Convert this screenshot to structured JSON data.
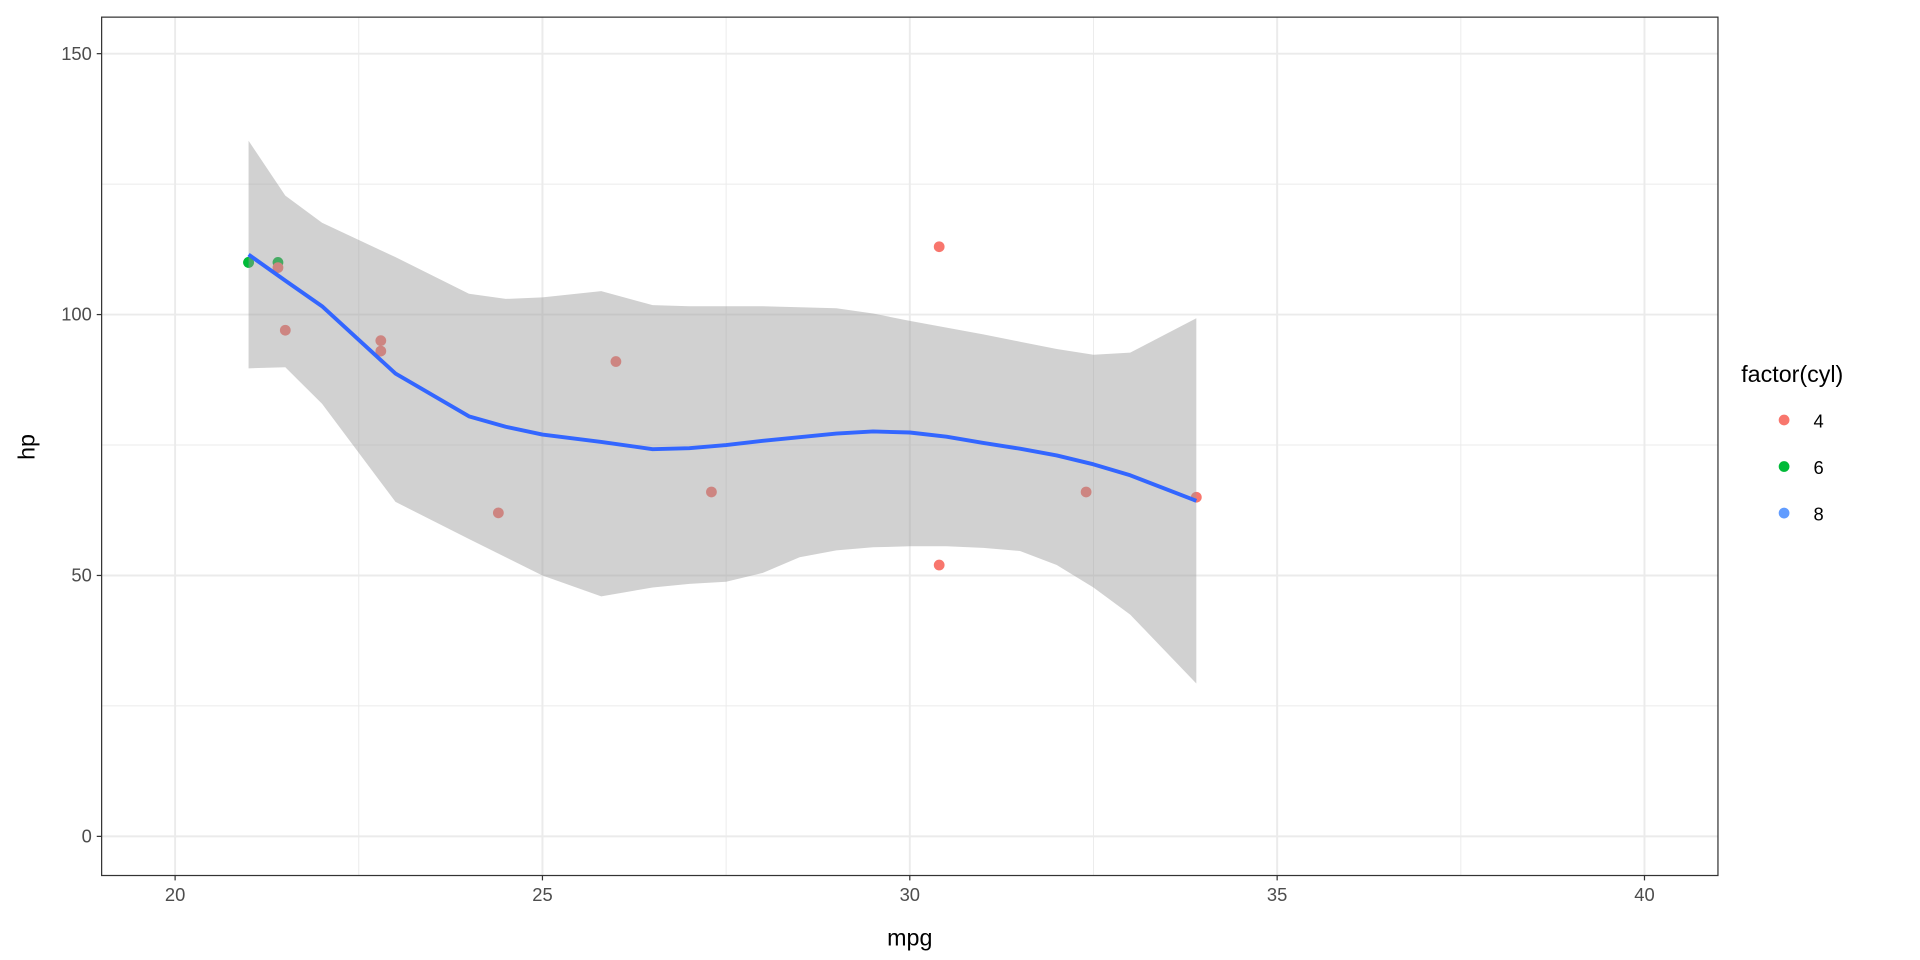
{
  "chart_data": {
    "type": "scatter",
    "title": "",
    "xlabel": "mpg",
    "ylabel": "hp",
    "xlim": [
      19.0,
      41.0
    ],
    "ylim": [
      -7.5,
      157
    ],
    "x_ticks": [
      20,
      25,
      30,
      35,
      40
    ],
    "y_ticks": [
      0,
      50,
      100,
      150
    ],
    "grid": true,
    "legend": {
      "title": "factor(cyl)",
      "placement": "right",
      "entries": [
        {
          "label": "4",
          "color": "#F8766D"
        },
        {
          "label": "6",
          "color": "#00BA38"
        },
        {
          "label": "8",
          "color": "#619CFF"
        }
      ]
    },
    "points": [
      {
        "x": 21.0,
        "y": 110,
        "cyl": "6"
      },
      {
        "x": 21.0,
        "y": 110,
        "cyl": "6"
      },
      {
        "x": 22.8,
        "y": 93,
        "cyl": "4"
      },
      {
        "x": 21.4,
        "y": 110,
        "cyl": "6"
      },
      {
        "x": 24.4,
        "y": 62,
        "cyl": "4"
      },
      {
        "x": 22.8,
        "y": 95,
        "cyl": "4"
      },
      {
        "x": 32.4,
        "y": 66,
        "cyl": "4"
      },
      {
        "x": 30.4,
        "y": 52,
        "cyl": "4"
      },
      {
        "x": 33.9,
        "y": 65,
        "cyl": "4"
      },
      {
        "x": 21.5,
        "y": 97,
        "cyl": "4"
      },
      {
        "x": 27.3,
        "y": 66,
        "cyl": "4"
      },
      {
        "x": 26.0,
        "y": 91,
        "cyl": "4"
      },
      {
        "x": 30.4,
        "y": 113,
        "cyl": "4"
      },
      {
        "x": 21.4,
        "y": 109,
        "cyl": "4"
      }
    ],
    "smooth": {
      "color": "#3366FF",
      "ribbon_color": "#999999",
      "x": [
        21.0,
        21.5,
        22.0,
        23.0,
        24.0,
        24.5,
        25.0,
        25.8,
        26.5,
        27.0,
        27.5,
        28.0,
        28.5,
        29.0,
        29.5,
        30.0,
        30.5,
        31.0,
        31.5,
        32.0,
        32.5,
        33.0,
        33.9
      ],
      "fit": [
        111.5,
        106.5,
        101.6,
        88.7,
        80.5,
        78.5,
        77.0,
        75.6,
        74.2,
        74.4,
        75.0,
        75.8,
        76.5,
        77.2,
        77.6,
        77.4,
        76.6,
        75.4,
        74.3,
        73.0,
        71.3,
        69.2,
        64.3
      ],
      "upper": [
        133.3,
        122.8,
        117.6,
        111.0,
        104.0,
        103.0,
        103.3,
        104.5,
        101.8,
        101.6,
        101.6,
        101.6,
        101.4,
        101.2,
        100.2,
        98.8,
        97.5,
        96.2,
        94.8,
        93.4,
        92.3,
        92.7,
        99.3
      ],
      "lower": [
        89.7,
        89.9,
        82.9,
        64.1,
        57.0,
        53.5,
        50.0,
        46.0,
        47.7,
        48.4,
        48.8,
        50.5,
        53.5,
        54.8,
        55.4,
        55.6,
        55.6,
        55.3,
        54.7,
        52.0,
        47.7,
        42.5,
        29.3
      ]
    }
  }
}
